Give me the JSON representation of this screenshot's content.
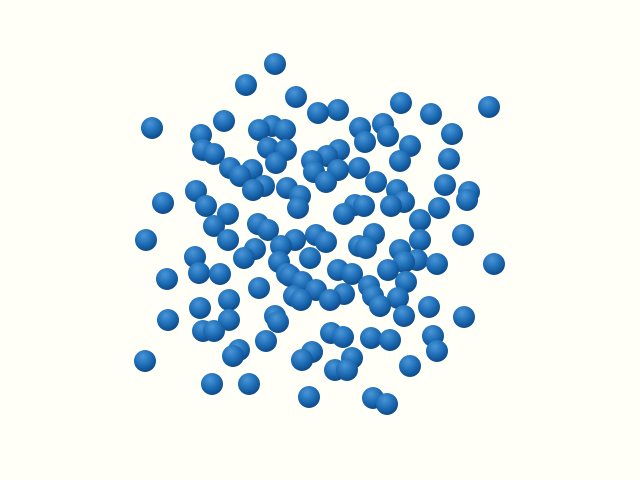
{
  "scene": {
    "background_color": "#fffff8",
    "sphere_color": "#1f6fb8",
    "sphere_highlight_color": "#4a95d6",
    "sphere_shadow_color": "#0d4a8a",
    "sphere_count": 135
  }
}
